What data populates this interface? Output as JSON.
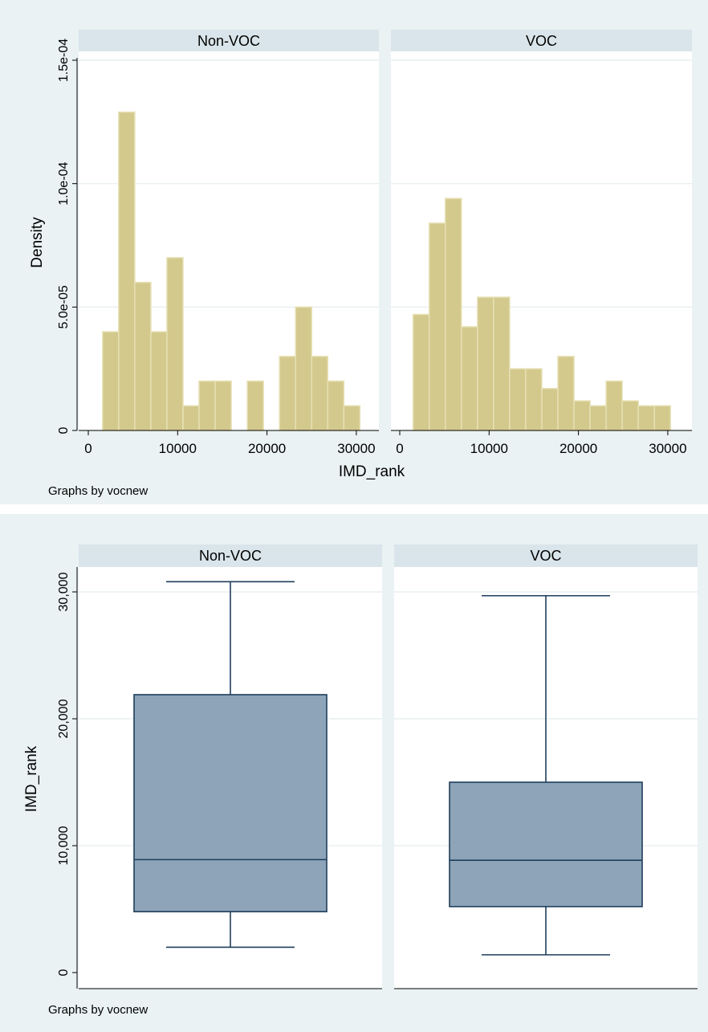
{
  "chart_data": [
    {
      "type": "histogram",
      "by_variable_note": "Graphs by vocnew",
      "xlabel": "IMD_rank",
      "ylabel": "Density",
      "xlim": [
        0,
        31000
      ],
      "ylim": [
        0,
        0.000152
      ],
      "x_ticks": [
        0,
        10000,
        20000,
        30000
      ],
      "x_tick_labels": [
        "0",
        "10000",
        "20000",
        "30000"
      ],
      "y_ticks": [
        0,
        5e-05,
        0.0001,
        0.00015
      ],
      "y_tick_labels": [
        "0",
        "5.0e-05",
        "1.0e-04",
        "1.5e-04"
      ],
      "bar_color": "#d4c98d",
      "bar_edge": "#e6e0b4",
      "grid": true,
      "panels": [
        {
          "title": "Non-VOC",
          "bins": [
            {
              "x0": 1600,
              "x1": 3400,
              "density": 4e-05
            },
            {
              "x0": 3400,
              "x1": 5200,
              "density": 0.000129
            },
            {
              "x0": 5200,
              "x1": 7000,
              "density": 6e-05
            },
            {
              "x0": 7000,
              "x1": 8800,
              "density": 4e-05
            },
            {
              "x0": 8800,
              "x1": 10600,
              "density": 7e-05
            },
            {
              "x0": 10600,
              "x1": 12400,
              "density": 1e-05
            },
            {
              "x0": 12400,
              "x1": 14200,
              "density": 2e-05
            },
            {
              "x0": 14200,
              "x1": 16000,
              "density": 2e-05
            },
            {
              "x0": 16000,
              "x1": 17800,
              "density": 0
            },
            {
              "x0": 17800,
              "x1": 19600,
              "density": 2e-05
            },
            {
              "x0": 19600,
              "x1": 21400,
              "density": 0
            },
            {
              "x0": 21400,
              "x1": 23200,
              "density": 3e-05
            },
            {
              "x0": 23200,
              "x1": 25000,
              "density": 5e-05
            },
            {
              "x0": 25000,
              "x1": 26800,
              "density": 3e-05
            },
            {
              "x0": 26800,
              "x1": 28600,
              "density": 2e-05
            },
            {
              "x0": 28600,
              "x1": 30400,
              "density": 1e-05
            }
          ]
        },
        {
          "title": "VOC",
          "bins": [
            {
              "x0": 1500,
              "x1": 3300,
              "density": 4.7e-05
            },
            {
              "x0": 3300,
              "x1": 5100,
              "density": 8.4e-05
            },
            {
              "x0": 5100,
              "x1": 6900,
              "density": 9.4e-05
            },
            {
              "x0": 6900,
              "x1": 8700,
              "density": 4.2e-05
            },
            {
              "x0": 8700,
              "x1": 10500,
              "density": 5.4e-05
            },
            {
              "x0": 10500,
              "x1": 12300,
              "density": 5.4e-05
            },
            {
              "x0": 12300,
              "x1": 14100,
              "density": 2.5e-05
            },
            {
              "x0": 14100,
              "x1": 15900,
              "density": 2.5e-05
            },
            {
              "x0": 15900,
              "x1": 17700,
              "density": 1.7e-05
            },
            {
              "x0": 17700,
              "x1": 19500,
              "density": 3e-05
            },
            {
              "x0": 19500,
              "x1": 21300,
              "density": 1.2e-05
            },
            {
              "x0": 21300,
              "x1": 23100,
              "density": 1e-05
            },
            {
              "x0": 23100,
              "x1": 24900,
              "density": 2e-05
            },
            {
              "x0": 24900,
              "x1": 26700,
              "density": 1.2e-05
            },
            {
              "x0": 26700,
              "x1": 28500,
              "density": 1e-05
            },
            {
              "x0": 28500,
              "x1": 30300,
              "density": 1e-05
            }
          ]
        }
      ]
    },
    {
      "type": "box",
      "by_variable_note": "Graphs by vocnew",
      "ylabel": "IMD_rank",
      "ylim": [
        -1000,
        32200
      ],
      "y_ticks": [
        0,
        10000,
        20000,
        30000
      ],
      "y_tick_labels": [
        "0",
        "10,000",
        "20,000",
        "30,000"
      ],
      "box_color": "#8ea4b8",
      "line_color": "#1f3e5c",
      "grid": true,
      "panels": [
        {
          "title": "Non-VOC",
          "min": 2000,
          "q1": 4800,
          "median": 8900,
          "q3": 21900,
          "max": 30800
        },
        {
          "title": "VOC",
          "min": 1400,
          "q1": 5200,
          "median": 8850,
          "q3": 15000,
          "max": 29700
        }
      ]
    }
  ]
}
